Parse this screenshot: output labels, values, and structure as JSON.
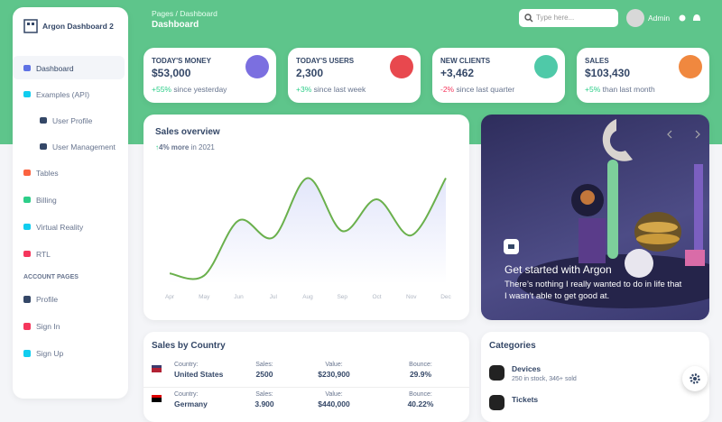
{
  "sidebar": {
    "brand": "Argon Dashboard 2",
    "nav": [
      "Dashboard",
      "Examples (API)",
      "User Profile",
      "User Management",
      "Tables",
      "Billing",
      "Virtual Reality",
      "RTL"
    ],
    "section": "ACCOUNT PAGES",
    "account": [
      "Profile",
      "Sign In",
      "Sign Up"
    ]
  },
  "header": {
    "breadcrumb": [
      "Pages",
      "Dashboard"
    ],
    "breadcrumb_separator": "/",
    "title": "Dashboard",
    "search_placeholder": "Type here...",
    "user": "Admin"
  },
  "stats": [
    {
      "label": "TODAY'S MONEY",
      "value": "$53,000",
      "change": "+55%",
      "note": "since yesterday"
    },
    {
      "label": "TODAY'S USERS",
      "value": "2,300",
      "change": "+3%",
      "note": "since last week"
    },
    {
      "label": "NEW CLIENTS",
      "value": "+3,462",
      "change": "-2%",
      "note": "since last quarter"
    },
    {
      "label": "SALES",
      "value": "$103,430",
      "change": "+5%",
      "note": "than last month"
    }
  ],
  "sales_chart": {
    "type": "line",
    "title": "Sales overview",
    "trend": "4% more",
    "trend_note": "in 2021",
    "categories": [
      "Apr",
      "May",
      "Jun",
      "Jul",
      "Aug",
      "Sep",
      "Oct",
      "Nov",
      "Dec"
    ],
    "values": [
      50,
      40,
      300,
      220,
      500,
      250,
      400,
      230,
      500
    ],
    "ylim": [
      0,
      600
    ],
    "color": "#6ab04c"
  },
  "carousel": {
    "title": "Get started with Argon",
    "text": "There’s nothing I really wanted to do in life that I wasn’t able to get good at."
  },
  "countries": {
    "title": "Sales by Country",
    "columns": [
      "Country:",
      "Sales:",
      "Value:",
      "Bounce:"
    ],
    "rows": [
      [
        "United States",
        "2500",
        "$230,900",
        "29.9%"
      ],
      [
        "Germany",
        "3.900",
        "$440,000",
        "40.22%"
      ]
    ]
  },
  "categories": {
    "title": "Categories",
    "items": [
      {
        "name": "Devices",
        "detail": "250 in stock, 346+ sold"
      },
      {
        "name": "Tickets"
      }
    ]
  }
}
